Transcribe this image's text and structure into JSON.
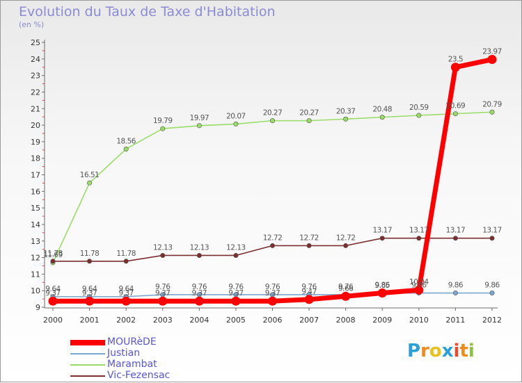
{
  "chart_data": {
    "type": "line",
    "title": "Evolution du Taux de Taxe d'Habitation",
    "ylabel": "(en %)",
    "xlabel": "",
    "x": [
      "2000",
      "2001",
      "2002",
      "2003",
      "2004",
      "2005",
      "2006",
      "2007",
      "2008",
      "2009",
      "2010",
      "2011",
      "2012"
    ],
    "ylim": [
      9,
      25
    ],
    "yticks": [
      "9",
      "10",
      "11",
      "12",
      "13",
      "14",
      "15",
      "16",
      "17",
      "18",
      "19",
      "20",
      "21",
      "22",
      "23",
      "24",
      "25"
    ],
    "grid": false,
    "legend_position": "bottom-left",
    "series": [
      {
        "name": "MOURèDE",
        "color": "#ff0000",
        "values": [
          9.37,
          9.37,
          9.37,
          9.37,
          9.37,
          9.37,
          9.37,
          9.47,
          9.66,
          9.86,
          10.04,
          23.5,
          23.97
        ],
        "labels": [
          "9.37",
          "9.37",
          "9.37",
          "9.37",
          "9.37",
          "9.37",
          "9.37",
          "9.47",
          "9.66",
          "9.86",
          "10.04",
          "23.5",
          "23.97"
        ]
      },
      {
        "name": "Justian",
        "color": "#7aa6cf",
        "values": [
          9.64,
          9.64,
          9.64,
          9.76,
          9.76,
          9.76,
          9.76,
          9.76,
          9.76,
          9.85,
          9.86,
          9.86,
          9.86
        ],
        "labels": [
          "9.64",
          "9.64",
          "9.64",
          "9.76",
          "9.76",
          "9.76",
          "9.76",
          "9.76",
          "9.76",
          "9.85",
          "9.86",
          "9.86",
          "9.86"
        ]
      },
      {
        "name": "Marambat",
        "color": "#99dd66",
        "values": [
          11.69,
          16.51,
          18.56,
          19.79,
          19.97,
          20.07,
          20.27,
          20.27,
          20.37,
          20.48,
          20.59,
          20.69,
          20.79
        ],
        "labels": [
          "11.69",
          "16.51",
          "18.56",
          "19.79",
          "19.97",
          "20.07",
          "20.27",
          "20.27",
          "20.37",
          "20.48",
          "20.59",
          "20.69",
          "20.79"
        ]
      },
      {
        "name": "Vic-Fezensac",
        "color": "#7a2e2e",
        "values": [
          11.78,
          11.78,
          11.78,
          12.13,
          12.13,
          12.13,
          12.72,
          12.72,
          12.72,
          13.17,
          13.17,
          13.17,
          13.17
        ],
        "labels": [
          "11.78",
          "11.78",
          "11.78",
          "12.13",
          "12.13",
          "12.13",
          "12.72",
          "12.72",
          "12.72",
          "13.17",
          "13.17",
          "13.17",
          "13.17"
        ]
      }
    ]
  },
  "logo": {
    "letters": [
      "P",
      "r",
      "o",
      "x",
      "i",
      "t",
      "i"
    ],
    "colors": [
      "#2aa0d8",
      "#f08a1c",
      "#e8c21c",
      "#2aa0d8",
      "#e84a2e",
      "#f08a1c",
      "#8ac43a"
    ]
  }
}
